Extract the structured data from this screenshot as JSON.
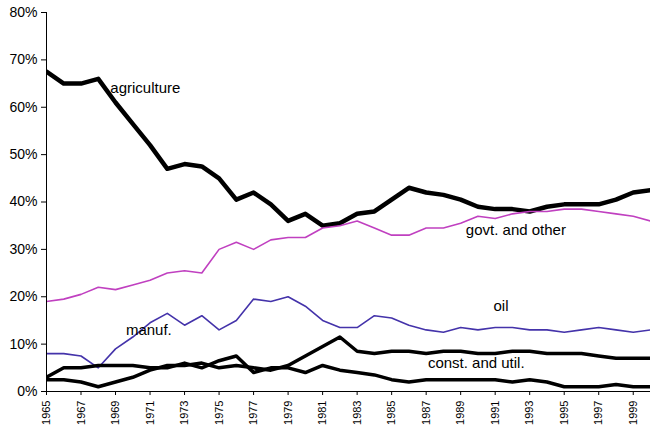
{
  "chart_data": {
    "type": "line",
    "x": [
      1965,
      1966,
      1967,
      1968,
      1969,
      1970,
      1971,
      1972,
      1973,
      1974,
      1975,
      1976,
      1977,
      1978,
      1979,
      1980,
      1981,
      1982,
      1983,
      1984,
      1985,
      1986,
      1987,
      1988,
      1989,
      1990,
      1991,
      1992,
      1993,
      1994,
      1995,
      1996,
      1997,
      1998,
      1999,
      2000
    ],
    "xlim": [
      1965,
      2000
    ],
    "xticks": [
      1965,
      1967,
      1969,
      1971,
      1973,
      1975,
      1977,
      1979,
      1981,
      1983,
      1985,
      1987,
      1989,
      1991,
      1993,
      1995,
      1997,
      1999
    ],
    "ylim": [
      0,
      80
    ],
    "yticks": [
      {
        "value": 0,
        "label": "0%"
      },
      {
        "value": 10,
        "label": "10%"
      },
      {
        "value": 20,
        "label": "20%"
      },
      {
        "value": 30,
        "label": "30%"
      },
      {
        "value": 40,
        "label": "40%"
      },
      {
        "value": 50,
        "label": "50%"
      },
      {
        "value": 60,
        "label": "60%"
      },
      {
        "value": 70,
        "label": "70%"
      },
      {
        "value": 80,
        "label": "80%"
      }
    ],
    "grid": false,
    "series": [
      {
        "name": "agriculture",
        "color": "#000000",
        "values": [
          67.5,
          65,
          65,
          66,
          61,
          56.5,
          52,
          47,
          48,
          47.5,
          45,
          40.5,
          42,
          39.5,
          36,
          37.5,
          35,
          35.5,
          37.5,
          38,
          40.5,
          43,
          42,
          41.5,
          40.5,
          39,
          38.5,
          38.5,
          38,
          39,
          39.5,
          39.5,
          39.5,
          40.5,
          42,
          42.5
        ]
      },
      {
        "name": "govt. and other",
        "color": "#c040c0",
        "values": [
          19,
          19.5,
          20.5,
          22,
          21.5,
          22.5,
          23.5,
          25,
          25.5,
          25,
          30,
          31.5,
          30,
          32,
          32.5,
          32.5,
          34.5,
          35,
          36,
          34.5,
          33,
          33,
          34.5,
          34.5,
          35.5,
          37,
          36.5,
          37.5,
          38,
          38,
          38.5,
          38.5,
          38,
          37.5,
          37,
          36
        ]
      },
      {
        "name": "oil",
        "color": "#4433aa",
        "values": [
          8,
          8,
          7.5,
          5,
          9,
          11.5,
          14.5,
          16.5,
          14,
          16,
          13,
          15,
          19.5,
          19,
          20,
          18,
          15,
          13.5,
          13.5,
          16,
          15.5,
          14,
          13,
          12.5,
          13.5,
          13,
          13.5,
          13.5,
          13,
          13,
          12.5,
          13,
          13.5,
          13,
          12.5,
          13
        ]
      },
      {
        "name": "manuf.",
        "color": "#000000",
        "values": [
          2.5,
          2.5,
          2,
          1,
          2,
          3,
          4.5,
          5.5,
          5.5,
          6,
          5,
          5.5,
          5,
          4.5,
          5.5,
          7.5,
          9.5,
          11.5,
          8.5,
          8,
          8.5,
          8.5,
          8,
          8.5,
          8.5,
          8,
          8,
          8.5,
          8.5,
          8,
          8,
          8,
          7.5,
          7,
          7,
          7
        ]
      },
      {
        "name": "const. and util.",
        "color": "#000000",
        "values": [
          3,
          5,
          5,
          5.5,
          5.5,
          5.5,
          5,
          5,
          6,
          5,
          6.5,
          7.5,
          4,
          5,
          5,
          4,
          5.5,
          4.5,
          4,
          3.5,
          2.5,
          2,
          2.5,
          2.5,
          2.5,
          2.5,
          2.5,
          2,
          2.5,
          2,
          1,
          1,
          1,
          1.5,
          1,
          1
        ]
      }
    ],
    "annotations": [
      {
        "text": "agriculture",
        "x": 1968.7,
        "y": 64
      },
      {
        "text": "govt. and other",
        "x": 1989.3,
        "y": 34
      },
      {
        "text": "oil",
        "x": 1990.9,
        "y": 18
      },
      {
        "text": "manuf.",
        "x": 1969.6,
        "y": 13
      },
      {
        "text": "const. and util.",
        "x": 1987.1,
        "y": 6
      }
    ]
  }
}
